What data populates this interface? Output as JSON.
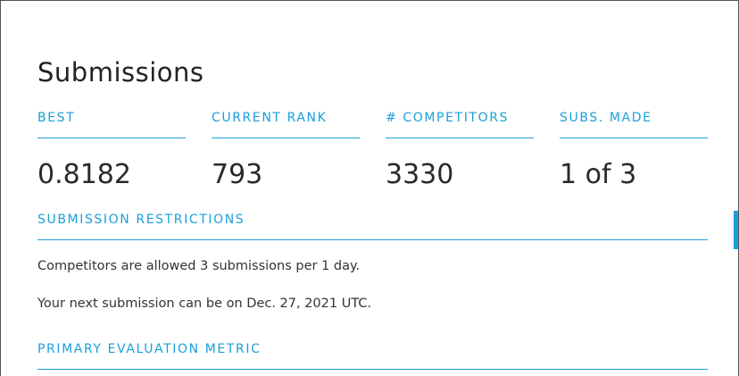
{
  "page": {
    "title": "Submissions"
  },
  "stats": [
    {
      "label": "BEST",
      "value": "0.8182"
    },
    {
      "label": "CURRENT RANK",
      "value": "793"
    },
    {
      "label": "# COMPETITORS",
      "value": "3330"
    },
    {
      "label": "SUBS. MADE",
      "value": "1 of 3"
    }
  ],
  "restrictions": {
    "heading": "SUBMISSION RESTRICTIONS",
    "allowed_text": "Competitors are allowed 3 submissions per 1 day.",
    "next_text": "Your next submission can be on Dec. 27, 2021 UTC."
  },
  "metric": {
    "heading": "PRIMARY EVALUATION METRIC"
  },
  "colors": {
    "accent": "#1a9fd9",
    "text": "#333333"
  }
}
